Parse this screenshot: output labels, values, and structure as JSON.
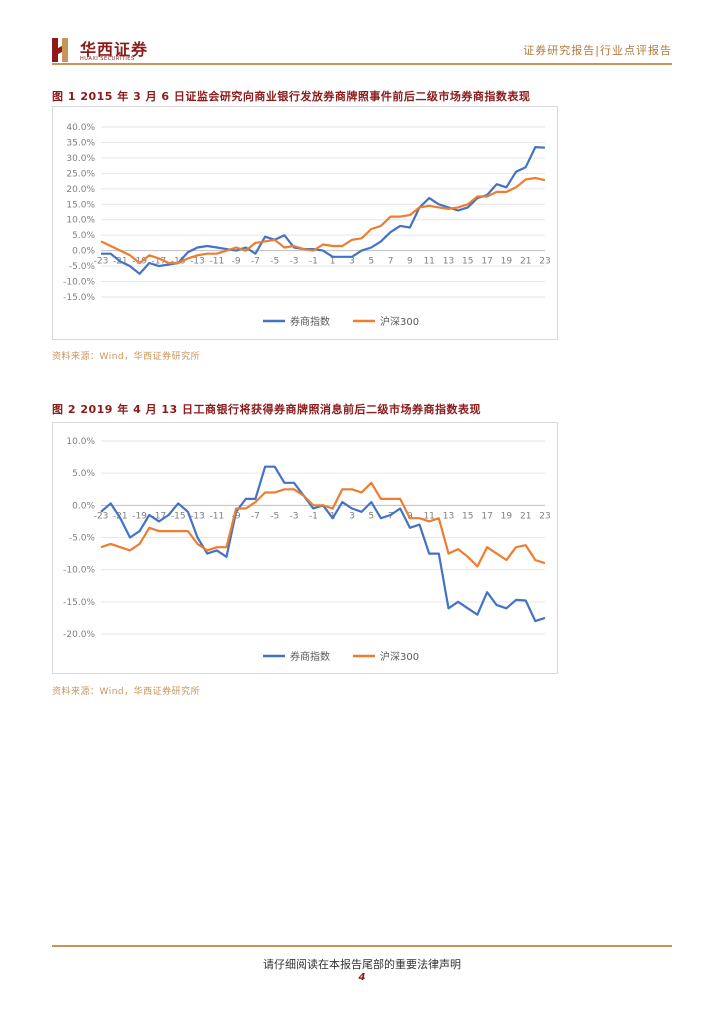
{
  "header": {
    "logo_cn": "华西证券",
    "logo_en": "HUAXI SECURITIES",
    "right_text": "证券研究报告|行业点评报告"
  },
  "figures": [
    {
      "title": "图 1 2015 年 3 月 6 日证监会研究向商业银行发放券商牌照事件前后二级市场券商指数表现",
      "source": "资料来源：Wind，华西证券研究所"
    },
    {
      "title": "图 2 2019 年 4 月 13 日工商银行将获得券商牌照消息前后二级市场券商指数表现",
      "source": "资料来源：Wind，华西证券研究所"
    }
  ],
  "footer": {
    "text": "请仔细阅读在本报告尾部的重要法律声明",
    "page": "4"
  },
  "chart_data": [
    {
      "type": "line",
      "title": "",
      "xlabel": "",
      "ylabel": "",
      "x": [
        -23,
        -22,
        -21,
        -20,
        -19,
        -18,
        -17,
        -16,
        -15,
        -14,
        -13,
        -12,
        -11,
        -10,
        -9,
        -8,
        -7,
        -6,
        -5,
        -4,
        -3,
        -2,
        -1,
        0,
        1,
        2,
        3,
        4,
        5,
        6,
        7,
        8,
        9,
        10,
        11,
        12,
        13,
        14,
        15,
        16,
        17,
        18,
        19,
        20,
        21,
        22,
        23
      ],
      "x_tick_labels": [
        "-23",
        "-21",
        "-19",
        "-17",
        "-15",
        "-13",
        "-11",
        "-9",
        "-7",
        "-5",
        "-3",
        "-1",
        "1",
        "3",
        "5",
        "7",
        "9",
        "11",
        "13",
        "15",
        "17",
        "19",
        "21",
        "23"
      ],
      "y_tick_labels": [
        "40.0%",
        "35.0%",
        "30.0%",
        "25.0%",
        "20.0%",
        "15.0%",
        "10.0%",
        "5.0%",
        "0.0%",
        "-5.0%",
        "-10.0%",
        "-15.0%"
      ],
      "ylim": [
        -15,
        40
      ],
      "y_step": 5,
      "grid": true,
      "legend_position": "bottom",
      "series": [
        {
          "name": "券商指数",
          "color": "#4472c4",
          "values": [
            -1,
            -1,
            -3.5,
            -5,
            -7.5,
            -4,
            -5,
            -4.5,
            -4,
            -0.5,
            1,
            1.5,
            1,
            0.5,
            0,
            1,
            -1,
            4.5,
            3.5,
            5,
            1,
            0.5,
            0.5,
            0,
            -2,
            -2,
            -2,
            0,
            1,
            3,
            6,
            8,
            7.5,
            14,
            17,
            15,
            14,
            13,
            14,
            17,
            18,
            21.5,
            20.5,
            25.5,
            27,
            33.5,
            33.3
          ]
        },
        {
          "name": "沪深300",
          "color": "#ed7d31",
          "values": [
            3,
            1.5,
            0,
            -1.5,
            -4,
            -1.5,
            -2.5,
            -4,
            -4,
            -2.5,
            -1.5,
            -1,
            -1,
            0,
            1,
            0,
            2.5,
            3,
            3.5,
            1,
            1.5,
            0.5,
            0,
            2,
            1.5,
            1.5,
            3.5,
            4,
            7,
            8,
            11,
            11,
            11.5,
            14,
            14.5,
            14,
            13.5,
            14,
            15,
            17.5,
            17.5,
            19,
            19,
            20.5,
            23,
            23.5,
            22.8
          ]
        }
      ]
    },
    {
      "type": "line",
      "title": "",
      "xlabel": "",
      "ylabel": "",
      "x": [
        -23,
        -22,
        -21,
        -20,
        -19,
        -18,
        -17,
        -16,
        -15,
        -14,
        -13,
        -12,
        -11,
        -10,
        -9,
        -8,
        -7,
        -6,
        -5,
        -4,
        -3,
        -2,
        -1,
        0,
        1,
        2,
        3,
        4,
        5,
        6,
        7,
        8,
        9,
        10,
        11,
        12,
        13,
        14,
        15,
        16,
        17,
        18,
        19,
        20,
        21,
        22,
        23
      ],
      "x_tick_labels": [
        "-23",
        "-21",
        "-19",
        "-17",
        "-15",
        "-13",
        "-11",
        "-9",
        "-7",
        "-5",
        "-3",
        "-1",
        "1",
        "3",
        "5",
        "7",
        "9",
        "11",
        "13",
        "15",
        "17",
        "19",
        "21",
        "23"
      ],
      "y_tick_labels": [
        "10.0%",
        "5.0%",
        "0.0%",
        "-5.0%",
        "-10.0%",
        "-15.0%",
        "-20.0%"
      ],
      "ylim": [
        -20,
        10
      ],
      "y_step": 5,
      "grid": true,
      "legend_position": "bottom",
      "series": [
        {
          "name": "券商指数",
          "color": "#4472c4",
          "values": [
            -1,
            0.3,
            -2,
            -5,
            -4,
            -1.5,
            -2.5,
            -1.5,
            0.3,
            -1,
            -5,
            -7.5,
            -7,
            -8,
            -1,
            1,
            1,
            6,
            6,
            3.5,
            3.5,
            1.5,
            -0.5,
            0,
            -2,
            0.5,
            -0.5,
            -1,
            0.5,
            -2,
            -1.5,
            -0.5,
            -3.5,
            -3,
            -7.5,
            -7.5,
            -16,
            -15,
            -16,
            -17,
            -13.5,
            -15.5,
            -16,
            -14.7,
            -14.8,
            -18,
            -17.5
          ]
        },
        {
          "name": "沪深300",
          "color": "#ed7d31",
          "values": [
            -6.5,
            -6,
            -6.5,
            -7,
            -6,
            -3.5,
            -4,
            -4,
            -4,
            -4,
            -6,
            -7,
            -6.5,
            -6.5,
            -0.5,
            -0.5,
            0.5,
            2,
            2,
            2.5,
            2.5,
            1.5,
            0,
            0,
            -0.5,
            2.5,
            2.5,
            2,
            3.5,
            1,
            1,
            1,
            -2,
            -2,
            -2.5,
            -2,
            -7.5,
            -6.8,
            -8,
            -9.5,
            -6.5,
            -7.5,
            -8.5,
            -6.5,
            -6.2,
            -8.5,
            -9
          ]
        }
      ]
    }
  ]
}
